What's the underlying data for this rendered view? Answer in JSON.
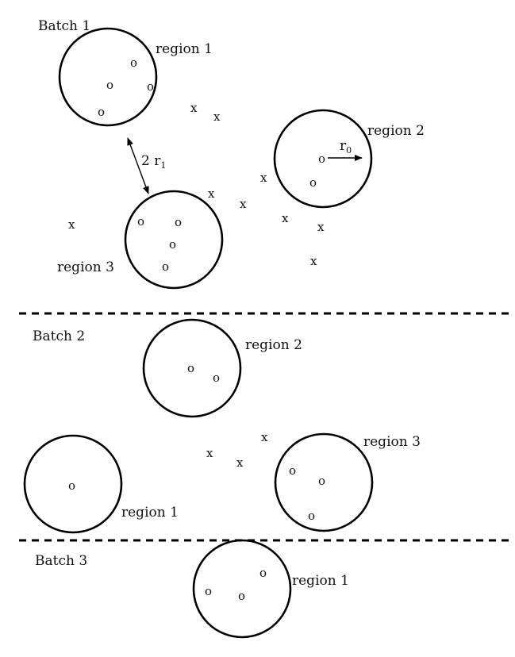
{
  "batches": [
    {
      "label": "Batch 1",
      "regions": [
        {
          "label": "region 1"
        },
        {
          "label": "region 2"
        },
        {
          "label": "region 3"
        }
      ]
    },
    {
      "label": "Batch 2",
      "regions": [
        {
          "label": "region 2"
        },
        {
          "label": "region 1"
        },
        {
          "label": "region 3"
        }
      ]
    },
    {
      "label": "Batch 3",
      "regions": [
        {
          "label": "region 1"
        }
      ]
    }
  ],
  "symbols": {
    "inside": "o",
    "outside": "x"
  },
  "annotations": {
    "separation_coef": "2 r",
    "separation_sub": "1",
    "radius_main": "r",
    "radius_sub": "0"
  }
}
